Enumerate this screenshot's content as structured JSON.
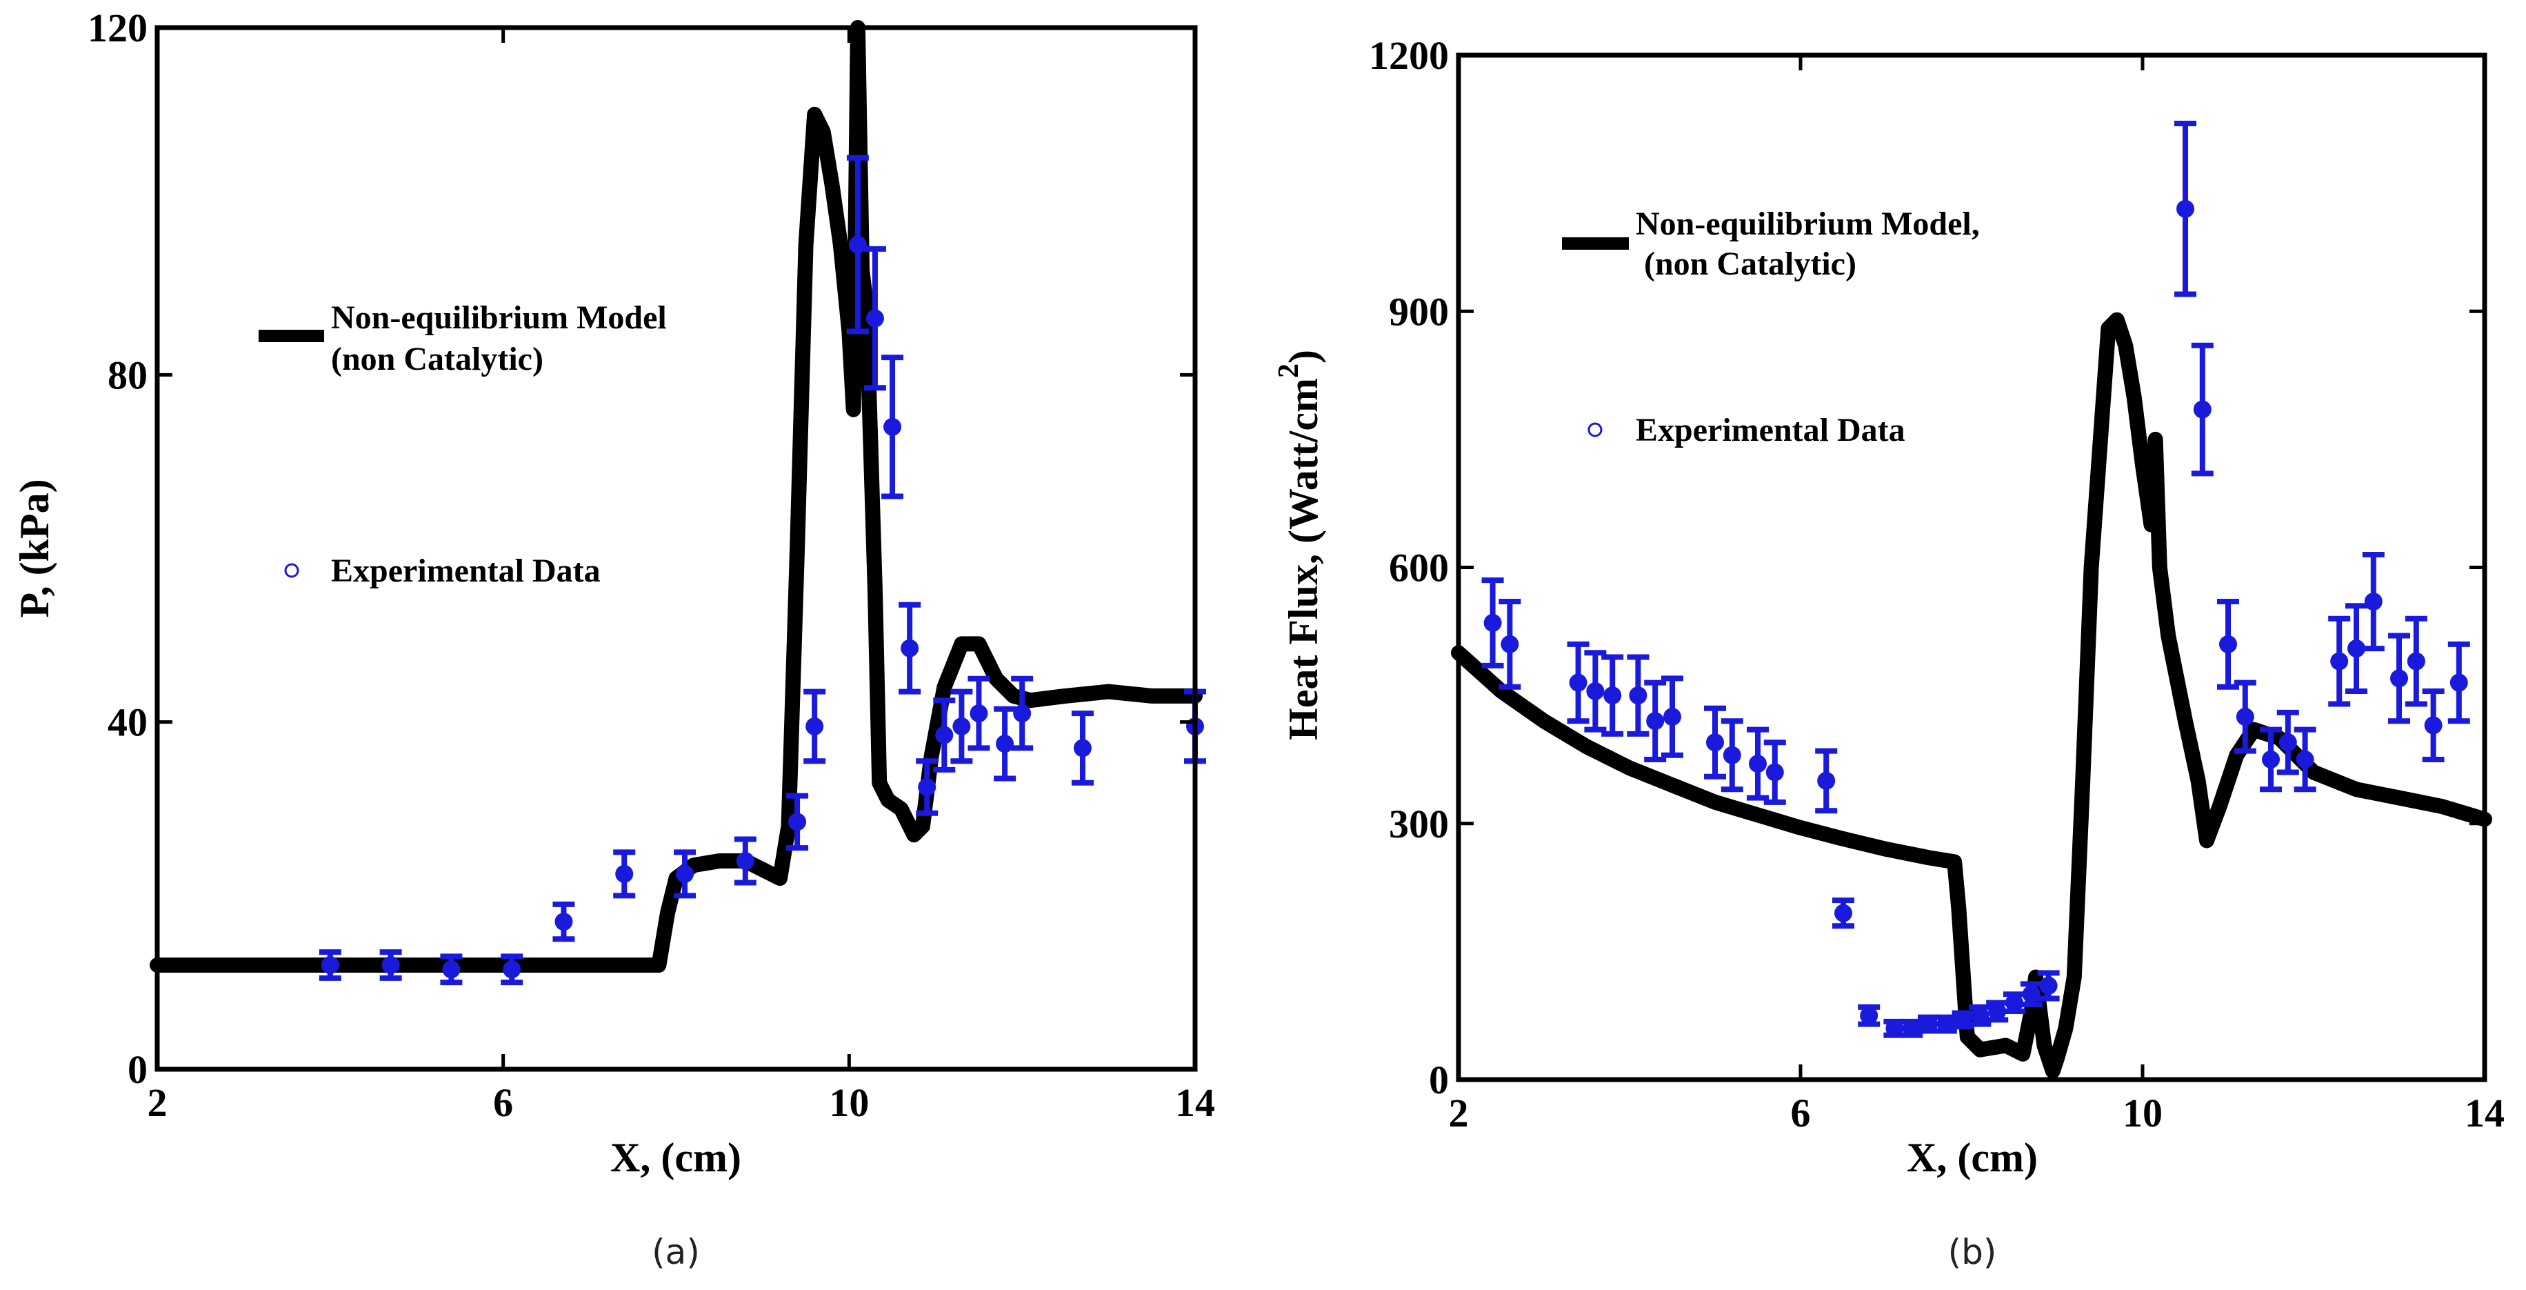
{
  "colors": {
    "model": "#000000",
    "experiment": "#1a1adc",
    "background": "#ffffff"
  },
  "charts": [
    {
      "id": "a",
      "chart_data": {
        "type": "line",
        "xlabel": "X, (cm)",
        "ylabel": "P, (kPa)",
        "xlim": [
          2,
          14
        ],
        "ylim": [
          0,
          120
        ],
        "xticks": [
          2,
          6,
          10,
          14
        ],
        "yticks": [
          0,
          40,
          80,
          120
        ],
        "caption": "(a)",
        "legend": [
          {
            "label_lines": [
              "Non-equilibrium Model",
              "(non Catalytic)"
            ],
            "marker": "thick-line"
          },
          {
            "label_lines": [
              "Experimental Data"
            ],
            "marker": "circle"
          }
        ],
        "series": [
          {
            "name": "Non-equilibrium Model (non Catalytic)",
            "kind": "line",
            "x": [
              2.0,
              3.0,
              4.0,
              5.0,
              6.0,
              7.0,
              7.8,
              7.9,
              8.0,
              8.2,
              8.5,
              8.8,
              9.0,
              9.2,
              9.3,
              9.4,
              9.5,
              9.6,
              9.7,
              9.8,
              9.9,
              10.0,
              10.05,
              10.1,
              10.15,
              10.2,
              10.3,
              10.35,
              10.45,
              10.6,
              10.75,
              10.85,
              10.95,
              11.1,
              11.3,
              11.5,
              11.7,
              11.9,
              12.1,
              12.5,
              13.0,
              13.5,
              14.0
            ],
            "y": [
              12,
              12,
              12,
              12,
              12,
              12,
              12,
              18,
              22,
              23.5,
              24,
              24,
              23,
              22,
              28,
              60,
              95,
              110,
              108,
              102,
              95,
              85,
              76,
              120,
              92,
              88,
              55,
              33,
              31,
              30,
              27,
              28,
              36,
              44,
              49,
              49,
              45,
              43,
              42.5,
              43,
              43.5,
              43,
              43
            ]
          },
          {
            "name": "Experimental Data",
            "kind": "scatter",
            "x": [
              4.0,
              4.7,
              5.4,
              6.1,
              6.7,
              7.4,
              8.1,
              8.8,
              9.4,
              9.6,
              10.1,
              10.3,
              10.5,
              10.7,
              10.9,
              11.1,
              11.3,
              11.5,
              11.8,
              12.0,
              12.7,
              14.0
            ],
            "y": [
              12,
              12,
              11.5,
              11.5,
              17,
              22.5,
              22.5,
              24,
              28.5,
              39.5,
              95,
              86.5,
              74,
              48.5,
              32.5,
              38.5,
              39.5,
              41,
              37.5,
              41,
              37,
              39.5
            ],
            "err": [
              1.5,
              1.5,
              1.5,
              1.5,
              2,
              2.5,
              2.5,
              2.5,
              3,
              4,
              10,
              8,
              8,
              5,
              3,
              4,
              4,
              4,
              4,
              4,
              4,
              4
            ]
          }
        ]
      }
    },
    {
      "id": "b",
      "chart_data": {
        "type": "line",
        "xlabel": "X, (cm)",
        "ylabel": "Heat Flux, (Watt/cm",
        "ylabel_sup": "2",
        "ylabel_tail": ")",
        "xlim": [
          2,
          14
        ],
        "ylim": [
          0,
          1200
        ],
        "xticks": [
          2,
          6,
          10,
          14
        ],
        "yticks": [
          0,
          300,
          600,
          900,
          1200
        ],
        "caption": "(b)",
        "legend": [
          {
            "label_lines": [
              "Non-equilibrium Model,",
              " (non Catalytic)"
            ],
            "marker": "thick-line"
          },
          {
            "label_lines": [
              "Experimental Data"
            ],
            "marker": "circle"
          }
        ],
        "series": [
          {
            "name": "Non-equilibrium Model, (non Catalytic)",
            "kind": "line",
            "x": [
              2.0,
              2.5,
              3.0,
              3.5,
              4.0,
              4.5,
              5.0,
              5.5,
              6.0,
              6.5,
              7.0,
              7.5,
              7.8,
              7.85,
              7.95,
              8.1,
              8.4,
              8.6,
              8.7,
              8.75,
              8.85,
              8.95,
              9.0,
              9.1,
              9.2,
              9.3,
              9.4,
              9.6,
              9.7,
              9.8,
              9.9,
              10.0,
              10.1,
              10.15,
              10.2,
              10.3,
              10.5,
              10.65,
              10.75,
              10.9,
              11.1,
              11.3,
              11.6,
              12.0,
              12.5,
              13.0,
              13.5,
              14.0
            ],
            "y": [
              500,
              455,
              420,
              390,
              365,
              345,
              325,
              310,
              295,
              282,
              270,
              260,
              255,
              200,
              50,
              35,
              40,
              30,
              80,
              120,
              40,
              10,
              25,
              60,
              120,
              350,
              600,
              880,
              890,
              860,
              800,
              720,
              650,
              750,
              600,
              520,
              420,
              350,
              280,
              320,
              380,
              410,
              400,
              360,
              340,
              330,
              320,
              305
            ]
          },
          {
            "name": "Experimental Data",
            "kind": "scatter",
            "x": [
              2.4,
              2.6,
              3.4,
              3.6,
              3.8,
              4.1,
              4.3,
              4.5,
              5.0,
              5.2,
              5.5,
              5.7,
              6.3,
              6.5,
              6.8,
              7.1,
              7.3,
              7.5,
              7.7,
              7.9,
              8.1,
              8.3,
              8.5,
              8.7,
              8.9,
              10.5,
              10.7,
              11.0,
              11.2,
              11.5,
              11.7,
              11.9,
              12.3,
              12.5,
              12.7,
              13.0,
              13.2,
              13.4,
              13.7
            ],
            "y": [
              535,
              510,
              465,
              455,
              450,
              450,
              420,
              425,
              395,
              380,
              370,
              360,
              350,
              195,
              75,
              60,
              60,
              65,
              65,
              70,
              75,
              80,
              90,
              100,
              110,
              1020,
              785,
              510,
              425,
              375,
              395,
              375,
              490,
              505,
              560,
              470,
              490,
              415,
              465
            ],
            "err": [
              50,
              50,
              45,
              45,
              45,
              45,
              45,
              45,
              40,
              40,
              40,
              35,
              35,
              15,
              10,
              8,
              8,
              8,
              8,
              8,
              10,
              10,
              10,
              12,
              15,
              100,
              75,
              50,
              40,
              35,
              35,
              35,
              50,
              50,
              55,
              50,
              50,
              40,
              45
            ]
          }
        ]
      }
    }
  ]
}
